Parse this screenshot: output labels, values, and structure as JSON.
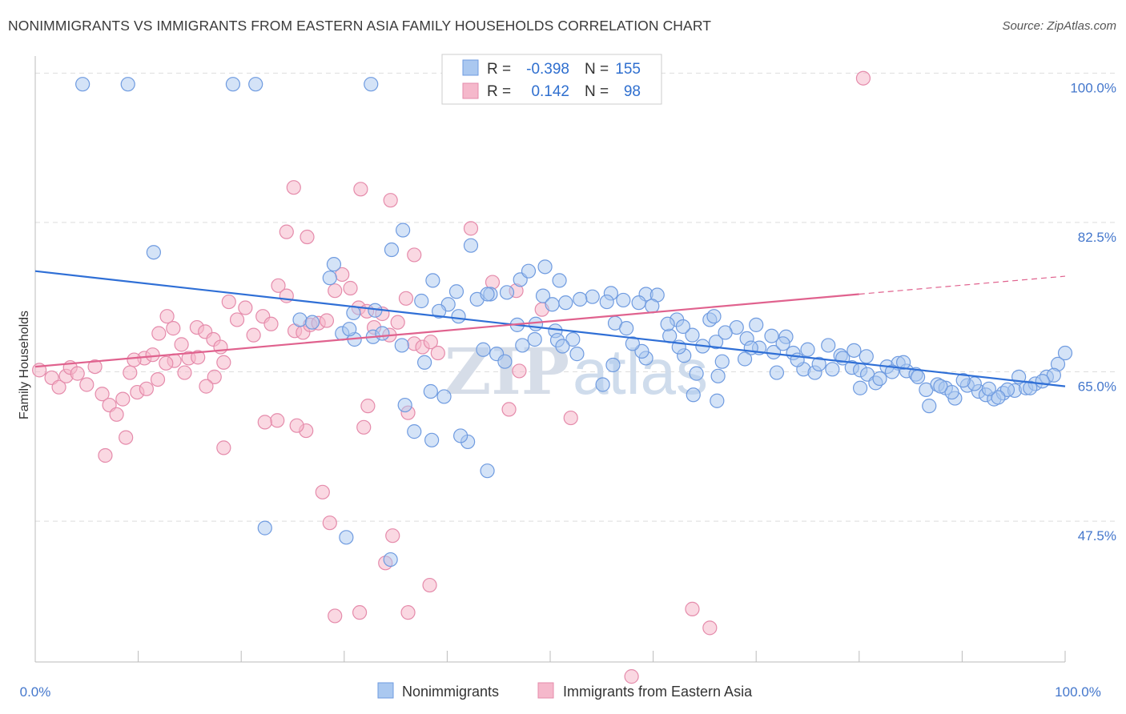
{
  "title": "NONIMMIGRANTS VS IMMIGRANTS FROM EASTERN ASIA FAMILY HOUSEHOLDS CORRELATION CHART",
  "source": "Source: ZipAtlas.com",
  "watermark": {
    "zip": "ZIP",
    "atlas": "atlas"
  },
  "legend": {
    "rows": [
      {
        "r_label": "R =",
        "r_value": "-0.398",
        "n_label": "N =",
        "n_value": "155"
      },
      {
        "r_label": "R =",
        "r_value": "0.142",
        "n_label": "N =",
        "n_value": "98"
      }
    ]
  },
  "colors": {
    "blue": "#2f6fd6",
    "blue_fill": "#aac8f0",
    "pink": "#e0628e",
    "pink_fill": "#f5b8cb",
    "grid": "#dddddd",
    "tick_text": "#4477cc"
  },
  "chart_data": {
    "type": "scatter",
    "title": "NONIMMIGRANTS VS IMMIGRANTS FROM EASTERN ASIA FAMILY HOUSEHOLDS CORRELATION CHART",
    "xlabel": "",
    "ylabel": "Family Households",
    "xlim": [
      0,
      100
    ],
    "ylim": [
      31,
      102
    ],
    "x_tick_labels": [
      "0.0%",
      "100.0%"
    ],
    "y_ticks": [
      47.5,
      65.0,
      82.5,
      100.0
    ],
    "y_tick_labels": [
      "47.5%",
      "65.0%",
      "82.5%",
      "100.0%"
    ],
    "grid": true,
    "legend_position": "top-center",
    "series": [
      {
        "name": "Nonimmigrants",
        "color": "#2f6fd6",
        "r": -0.398,
        "n": 155,
        "trend": {
          "x": [
            0,
            100
          ],
          "y": [
            76.8,
            63.3
          ]
        },
        "points": [
          [
            4.6,
            98.7
          ],
          [
            9,
            98.7
          ],
          [
            19.2,
            98.7
          ],
          [
            21.4,
            98.7
          ],
          [
            32.6,
            98.7
          ],
          [
            11.5,
            79
          ],
          [
            35.7,
            81.6
          ],
          [
            34.6,
            79.3
          ],
          [
            29,
            77.6
          ],
          [
            28.6,
            76
          ],
          [
            38.6,
            75.7
          ],
          [
            42.9,
            73.5
          ],
          [
            44.2,
            74.1
          ],
          [
            40.1,
            72.9
          ],
          [
            41.1,
            71.5
          ],
          [
            25.7,
            71.1
          ],
          [
            26.9,
            70.8
          ],
          [
            29.8,
            69.5
          ],
          [
            30.9,
            71.9
          ],
          [
            33,
            72.2
          ],
          [
            32.8,
            69.1
          ],
          [
            35.6,
            68.1
          ],
          [
            31,
            68.8
          ],
          [
            38.4,
            62.7
          ],
          [
            39.7,
            62.1
          ],
          [
            43.5,
            67.6
          ],
          [
            44.8,
            67.1
          ],
          [
            46.8,
            70.5
          ],
          [
            47.3,
            68.1
          ],
          [
            48.5,
            68.8
          ],
          [
            50.5,
            69.8
          ],
          [
            47.1,
            75.8
          ],
          [
            49.3,
            73.9
          ],
          [
            52.2,
            68.8
          ],
          [
            52.6,
            67.1
          ],
          [
            56.3,
            70.7
          ],
          [
            57.4,
            70.1
          ],
          [
            59.3,
            74.1
          ],
          [
            58.6,
            73.1
          ],
          [
            62.3,
            71.1
          ],
          [
            61.6,
            69.2
          ],
          [
            63,
            66.9
          ],
          [
            64.2,
            64.8
          ],
          [
            65.5,
            71.1
          ],
          [
            66.1,
            68.5
          ],
          [
            66.7,
            66.2
          ],
          [
            69.1,
            68.9
          ],
          [
            70.3,
            67.8
          ],
          [
            71.7,
            67.3
          ],
          [
            72.9,
            69.1
          ],
          [
            73.6,
            67.2
          ],
          [
            74.6,
            65.3
          ],
          [
            75.7,
            64.9
          ],
          [
            77,
            68.1
          ],
          [
            78.2,
            66.9
          ],
          [
            79.3,
            65.5
          ],
          [
            80.1,
            65.2
          ],
          [
            80.8,
            64.7
          ],
          [
            81.6,
            63.7
          ],
          [
            82.7,
            65.6
          ],
          [
            83.8,
            66
          ],
          [
            84.6,
            65.1
          ],
          [
            85.5,
            64.7
          ],
          [
            86.5,
            62.9
          ],
          [
            87.6,
            63.5
          ],
          [
            88.4,
            63.1
          ],
          [
            89.3,
            61.9
          ],
          [
            90.5,
            63.4
          ],
          [
            91.6,
            62.7
          ],
          [
            92.3,
            62.3
          ],
          [
            93.1,
            61.8
          ],
          [
            94,
            62.5
          ],
          [
            95.1,
            62.8
          ],
          [
            96.2,
            63.1
          ],
          [
            97.1,
            63.6
          ],
          [
            98.2,
            64.4
          ],
          [
            99.3,
            65.9
          ],
          [
            100,
            67.2
          ],
          [
            98.9,
            64.6
          ],
          [
            97.8,
            63.9
          ],
          [
            96.6,
            63.1
          ],
          [
            95.5,
            64.4
          ],
          [
            94.4,
            62.9
          ],
          [
            93.5,
            62
          ],
          [
            92.6,
            63
          ],
          [
            91.2,
            63.6
          ],
          [
            90.1,
            64
          ],
          [
            89,
            62.6
          ],
          [
            87.9,
            63.3
          ],
          [
            86.8,
            61
          ],
          [
            85.7,
            64.4
          ],
          [
            84.3,
            66.1
          ],
          [
            83.2,
            65
          ],
          [
            82,
            64.2
          ],
          [
            80.7,
            66.8
          ],
          [
            79.5,
            67.5
          ],
          [
            78.4,
            66.6
          ],
          [
            77.4,
            65.3
          ],
          [
            76.1,
            65.9
          ],
          [
            75,
            67.6
          ],
          [
            74,
            66.4
          ],
          [
            72.6,
            68.3
          ],
          [
            71.5,
            69.2
          ],
          [
            70,
            70.5
          ],
          [
            69.5,
            67.8
          ],
          [
            68.1,
            70.2
          ],
          [
            67,
            69.6
          ],
          [
            65.9,
            71.5
          ],
          [
            64.8,
            68
          ],
          [
            63.8,
            69.3
          ],
          [
            62.9,
            70.3
          ],
          [
            61.4,
            70.6
          ],
          [
            60.4,
            74
          ],
          [
            59.9,
            72.7
          ],
          [
            57.1,
            73.4
          ],
          [
            55.9,
            74.2
          ],
          [
            55.5,
            73.2
          ],
          [
            54.1,
            73.8
          ],
          [
            52.9,
            73.5
          ],
          [
            51.5,
            73.1
          ],
          [
            50.2,
            72.9
          ],
          [
            50.9,
            75.7
          ],
          [
            49.5,
            77.3
          ],
          [
            45.8,
            74.3
          ],
          [
            47.9,
            76.8
          ],
          [
            43.9,
            74.1
          ],
          [
            42.3,
            79.8
          ],
          [
            40.9,
            74.4
          ],
          [
            39.2,
            72.1
          ],
          [
            37.5,
            73.3
          ],
          [
            33.7,
            69.5
          ],
          [
            35.9,
            61.1
          ],
          [
            36.8,
            58
          ],
          [
            42,
            56.8
          ],
          [
            41.3,
            57.5
          ],
          [
            43.9,
            53.4
          ],
          [
            48.6,
            70.6
          ],
          [
            50.7,
            68.7
          ],
          [
            56.1,
            65.8
          ],
          [
            59.3,
            66.6
          ],
          [
            63.9,
            62.3
          ],
          [
            66.3,
            64.5
          ],
          [
            58.9,
            67.4
          ],
          [
            62.5,
            67.9
          ],
          [
            68.9,
            66.5
          ],
          [
            72,
            64.9
          ],
          [
            80.1,
            63.1
          ],
          [
            30.5,
            70
          ],
          [
            37.8,
            66.1
          ],
          [
            45.6,
            66.2
          ],
          [
            51.2,
            68
          ],
          [
            58,
            68.3
          ],
          [
            66.2,
            61.6
          ],
          [
            22.3,
            46.7
          ],
          [
            30.2,
            45.6
          ],
          [
            34.5,
            43
          ],
          [
            55.1,
            63.5
          ],
          [
            38.5,
            57
          ]
        ]
      },
      {
        "name": "Immigrants from Eastern Asia",
        "color": "#e0628e",
        "r": 0.142,
        "n": 98,
        "trend": {
          "x": [
            0,
            80
          ],
          "y": [
            65.6,
            74.1
          ]
        },
        "trend_dashed": {
          "x": [
            80,
            100
          ],
          "y": [
            74.1,
            76.2
          ]
        },
        "points": [
          [
            0.4,
            65.2
          ],
          [
            1.6,
            64.3
          ],
          [
            2.3,
            63.2
          ],
          [
            3,
            64.5
          ],
          [
            3.4,
            65.5
          ],
          [
            4.1,
            64.8
          ],
          [
            5,
            63.5
          ],
          [
            5.8,
            65.6
          ],
          [
            6.5,
            62.4
          ],
          [
            7.2,
            61.1
          ],
          [
            7.9,
            60
          ],
          [
            8.5,
            61.8
          ],
          [
            9.2,
            64.9
          ],
          [
            9.9,
            62.6
          ],
          [
            10.6,
            66.6
          ],
          [
            11.4,
            67
          ],
          [
            12,
            69.5
          ],
          [
            12.8,
            71.5
          ],
          [
            13.4,
            70.1
          ],
          [
            14.2,
            68.2
          ],
          [
            14.9,
            66.6
          ],
          [
            15.7,
            70.2
          ],
          [
            16.5,
            69.7
          ],
          [
            17.3,
            68.8
          ],
          [
            18,
            67.9
          ],
          [
            18.8,
            73.2
          ],
          [
            19.6,
            71.1
          ],
          [
            20.4,
            72.5
          ],
          [
            21.2,
            69.3
          ],
          [
            22.1,
            71.5
          ],
          [
            22.9,
            70.6
          ],
          [
            23.6,
            75.1
          ],
          [
            24.4,
            73.9
          ],
          [
            25.2,
            69.8
          ],
          [
            26,
            69.6
          ],
          [
            26.7,
            70.5
          ],
          [
            27.5,
            70.7
          ],
          [
            28.3,
            71
          ],
          [
            29.1,
            74.5
          ],
          [
            29.8,
            76.4
          ],
          [
            30.6,
            74.8
          ],
          [
            31.4,
            72.5
          ],
          [
            32.2,
            72.1
          ],
          [
            32.9,
            70.2
          ],
          [
            33.7,
            71.8
          ],
          [
            34.4,
            69.3
          ],
          [
            35.2,
            70.8
          ],
          [
            36,
            73.6
          ],
          [
            36.8,
            68.3
          ],
          [
            37.6,
            67.9
          ],
          [
            38.4,
            68.5
          ],
          [
            39.1,
            67.2
          ],
          [
            18.3,
            66.1
          ],
          [
            17.4,
            64.4
          ],
          [
            16.6,
            63.3
          ],
          [
            15.8,
            66.7
          ],
          [
            14.5,
            64.9
          ],
          [
            13.5,
            66.3
          ],
          [
            12.7,
            66
          ],
          [
            11.9,
            64.1
          ],
          [
            10.8,
            63
          ],
          [
            9.6,
            66.4
          ],
          [
            8.8,
            57.3
          ],
          [
            6.8,
            55.2
          ],
          [
            18.3,
            56.1
          ],
          [
            23.5,
            59.3
          ],
          [
            27.9,
            50.9
          ],
          [
            31.9,
            58.5
          ],
          [
            32.3,
            61
          ],
          [
            34.7,
            45.8
          ],
          [
            28.6,
            47.3
          ],
          [
            29.1,
            36.4
          ],
          [
            31.5,
            36.8
          ],
          [
            36.2,
            60.2
          ],
          [
            34,
            42.6
          ],
          [
            38.3,
            40
          ],
          [
            36.2,
            36.8
          ],
          [
            26.3,
            58.1
          ],
          [
            25.4,
            58.7
          ],
          [
            22.3,
            59.1
          ],
          [
            24.4,
            81.4
          ],
          [
            25.1,
            86.6
          ],
          [
            26.4,
            80.8
          ],
          [
            31.6,
            86.4
          ],
          [
            34.5,
            85.1
          ],
          [
            36.8,
            78.7
          ],
          [
            42.3,
            81.8
          ],
          [
            44.4,
            75.5
          ],
          [
            46.7,
            74.5
          ],
          [
            48,
            100
          ],
          [
            49.2,
            72.3
          ],
          [
            47,
            65.1
          ],
          [
            46,
            60.6
          ],
          [
            52,
            59.6
          ],
          [
            57.9,
            29.3
          ],
          [
            63.8,
            37.2
          ],
          [
            65.5,
            35
          ],
          [
            80.4,
            99.4
          ]
        ]
      }
    ]
  },
  "bottom_legend": {
    "items": [
      "Nonimmigrants",
      "Immigrants from Eastern Asia"
    ]
  }
}
